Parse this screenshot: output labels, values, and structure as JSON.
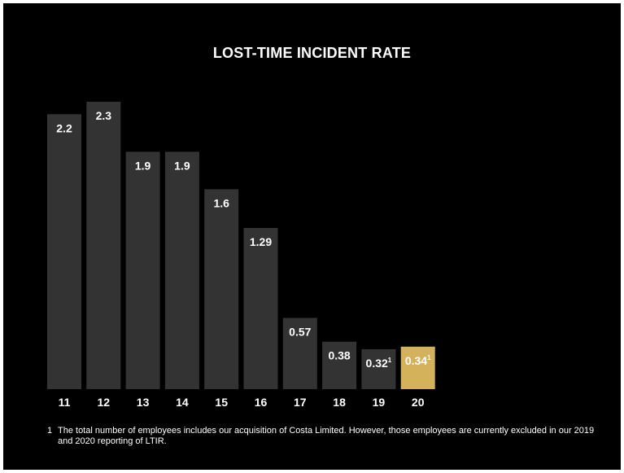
{
  "chart_data": {
    "type": "bar",
    "title": "LOST-TIME INCIDENT RATE",
    "xlabel": "",
    "ylabel": "",
    "categories": [
      "11",
      "12",
      "13",
      "14",
      "15",
      "16",
      "17",
      "18",
      "19",
      "20"
    ],
    "values": [
      2.2,
      2.3,
      1.9,
      1.9,
      1.6,
      1.29,
      0.57,
      0.38,
      0.32,
      0.34
    ],
    "value_labels": [
      "2.2",
      "2.3",
      "1.9",
      "1.9",
      "1.6",
      "1.29",
      "0.57",
      "0.38",
      "0.32",
      "0.34"
    ],
    "value_superscripts": [
      "",
      "",
      "",
      "",
      "",
      "",
      "",
      "",
      "1",
      "1"
    ],
    "ylim": [
      0,
      2.3
    ],
    "grid": false,
    "legend": "none",
    "colors": {
      "background": "#000000",
      "bar": "#333333",
      "highlight_bar": "#d4b25c",
      "text": "#ffffff"
    },
    "highlight_index": 9
  },
  "footnote": {
    "number": "1",
    "text": "The total number of employees includes our acquisition of Costa Limited. However, those employees are currently excluded in our 2019 and 2020 reporting of LTIR."
  }
}
